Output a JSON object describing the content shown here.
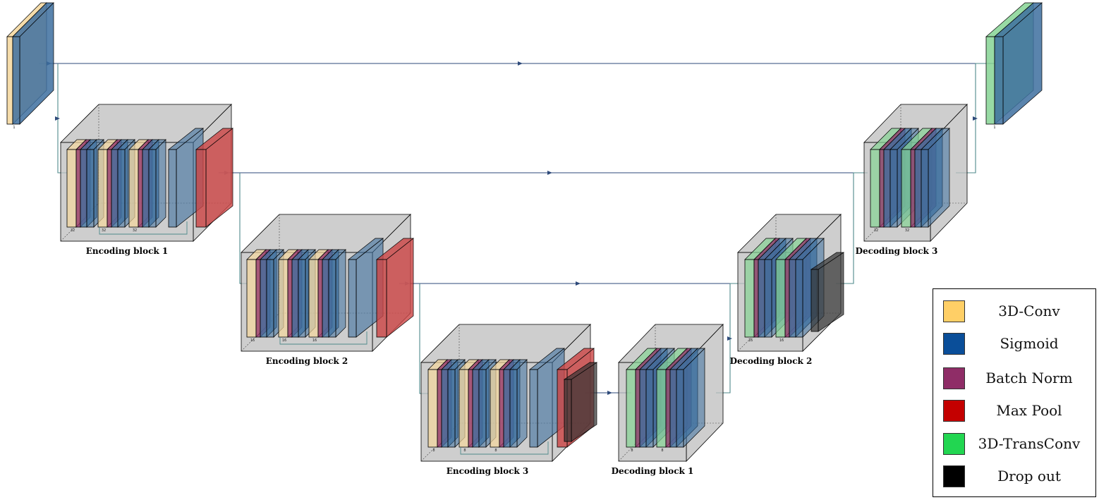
{
  "colors": {
    "conv": "#f5d79c",
    "sigmoid": "#3d6f9f",
    "batch_norm": "#8f2d67",
    "max_pool": "#cc4444",
    "trans_conv": "#86d494",
    "drop_out": "#333333",
    "block_box": "#bdbdbd",
    "arrow": "#2e4a7a",
    "skip": "#4f8a8b"
  },
  "blocks": {
    "enc1": {
      "caption": "Encoding block 1",
      "labels": [
        "32",
        "32",
        "32"
      ]
    },
    "enc2": {
      "caption": "Encoding block 2",
      "labels": [
        "16",
        "16",
        "16"
      ]
    },
    "enc3": {
      "caption": "Encoding block 3",
      "labels": [
        "8",
        "8",
        "8"
      ]
    },
    "dec1": {
      "caption": "Decoding block 1",
      "labels": [
        "8",
        "8"
      ]
    },
    "dec2": {
      "caption": "Decoding block 2",
      "labels": [
        "16",
        "16"
      ]
    },
    "dec3": {
      "caption": "Decoding block 3",
      "labels": [
        "32",
        "32"
      ]
    }
  },
  "io": {
    "input_label": "1",
    "output_label": "1"
  },
  "legend": {
    "items": [
      {
        "label": "3D-Conv",
        "color": "#ffcf66"
      },
      {
        "label": "Sigmoid",
        "color": "#0a4e99"
      },
      {
        "label": "Batch Norm",
        "color": "#8f2d67"
      },
      {
        "label": "Max Pool",
        "color": "#c40000"
      },
      {
        "label": "3D-TransConv",
        "color": "#22d651"
      },
      {
        "label": "Drop out",
        "color": "#000000"
      }
    ]
  }
}
